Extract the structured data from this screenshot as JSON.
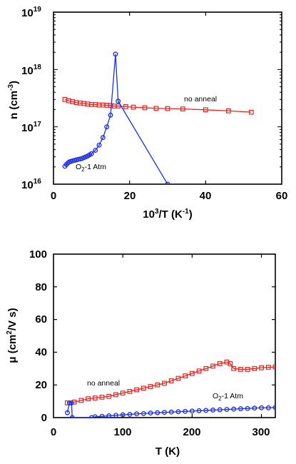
{
  "chart_data": [
    {
      "type": "line",
      "ylabel": "n (cm",
      "ylabel_sup": "-3",
      "ylabel_close": ")",
      "xlabel_pre": "10",
      "xlabel_sup1": "3",
      "xlabel_mid": "/T (K",
      "xlabel_sup2": "-1",
      "xlabel_close": ")",
      "xlim": [
        0,
        60
      ],
      "ylim": [
        1e+16,
        1e+19
      ],
      "yscale": "log",
      "xticks": [
        "0",
        "20",
        "40",
        "60"
      ],
      "yticks": [
        {
          "base": "10",
          "exp": "16"
        },
        {
          "base": "10",
          "exp": "17"
        },
        {
          "base": "10",
          "exp": "18"
        },
        {
          "base": "10",
          "exp": "19"
        }
      ],
      "series": [
        {
          "name": "no anneal",
          "color": "#e8231f",
          "marker": "square",
          "x": [
            3,
            4,
            5,
            6,
            7,
            8,
            9,
            10,
            11,
            12,
            13,
            14,
            15,
            16,
            17,
            19,
            21,
            24,
            27,
            30,
            34,
            40,
            46,
            52
          ],
          "y": [
            3e+17,
            2.85e+17,
            2.75e+17,
            2.65e+17,
            2.6e+17,
            2.55e+17,
            2.5e+17,
            2.45e+17,
            2.45e+17,
            2.4e+17,
            2.4e+17,
            2.38e+17,
            2.35e+17,
            2.3e+17,
            2.3e+17,
            2.25e+17,
            2.2e+17,
            2.15e+17,
            2.1e+17,
            2.08e+17,
            2.05e+17,
            1.98e+17,
            1.9e+17,
            1.8e+17
          ]
        },
        {
          "name": "O2-1 Atm",
          "color": "#1f2ee0",
          "marker": "circle",
          "x": [
            3,
            3.4,
            3.8,
            4.2,
            4.6,
            5,
            5.5,
            6,
            6.5,
            7,
            7.5,
            8,
            8.5,
            9,
            9.5,
            10,
            11,
            12,
            13,
            14,
            15,
            16.3,
            17,
            30
          ],
          "y": [
            2.05e+16,
            2.2e+16,
            2.35e+16,
            2.45e+16,
            2.5e+16,
            2.55e+16,
            2.6e+16,
            2.65e+16,
            2.7e+16,
            2.75e+16,
            2.8e+16,
            2.9e+16,
            3e+16,
            3.1e+16,
            3.25e+16,
            3.4e+16,
            3.9e+16,
            4.8e+16,
            6.5e+16,
            1e+17,
            1.6e+17,
            1.85e+18,
            2.8e+17,
            1e+16
          ]
        }
      ],
      "annotations": [
        {
          "text": "no anneal",
          "series": "no anneal"
        },
        {
          "text_pre": "O",
          "text_sub": "2",
          "text_post": "-1 Atm",
          "series": "O2-1 Atm"
        }
      ]
    },
    {
      "type": "line",
      "ylabel_pre": "μ (cm",
      "ylabel_sup": "2",
      "ylabel_post": "/V s)",
      "xlabel": "T (K)",
      "xlim": [
        0,
        320
      ],
      "ylim": [
        0,
        100
      ],
      "xticks": [
        "0",
        "100",
        "200",
        "300"
      ],
      "yticks": [
        "0",
        "20",
        "40",
        "60",
        "80",
        "100"
      ],
      "series": [
        {
          "name": "no anneal",
          "color": "#e8231f",
          "marker": "square",
          "x": [
            20,
            30,
            40,
            50,
            60,
            70,
            80,
            90,
            100,
            110,
            120,
            130,
            140,
            150,
            160,
            170,
            180,
            190,
            200,
            210,
            220,
            230,
            240,
            250,
            255,
            260,
            270,
            280,
            290,
            300,
            310,
            320
          ],
          "y": [
            9,
            9.5,
            10.5,
            11.5,
            12,
            12.5,
            13,
            14,
            15,
            16,
            17,
            18,
            19,
            20,
            21,
            22.5,
            24,
            25.5,
            27,
            28.5,
            30,
            31.5,
            33,
            34,
            33,
            30,
            29.5,
            29.5,
            30,
            30.5,
            30.8,
            31
          ]
        },
        {
          "name": "O2-1 Atm",
          "color": "#1f2ee0",
          "marker": "circle",
          "x": [
            20,
            23,
            26,
            27,
            55,
            60,
            70,
            80,
            90,
            100,
            110,
            120,
            130,
            140,
            150,
            160,
            170,
            180,
            190,
            200,
            210,
            220,
            230,
            240,
            250,
            260,
            270,
            280,
            290,
            300,
            310,
            320
          ],
          "y": [
            3,
            9,
            9,
            0,
            0,
            0.5,
            0.8,
            1.1,
            1.4,
            1.7,
            2,
            2.3,
            2.5,
            2.8,
            3,
            3.2,
            3.4,
            3.6,
            3.8,
            4,
            4.2,
            4.4,
            4.6,
            4.8,
            5,
            5.2,
            5.4,
            5.6,
            5.8,
            6,
            6,
            6.2
          ]
        }
      ],
      "annotations": [
        {
          "text": "no anneal",
          "series": "no anneal"
        },
        {
          "text_pre": "O",
          "text_sub": "2",
          "text_post": "-1 Atm",
          "series": "O2-1 Atm"
        }
      ]
    }
  ]
}
